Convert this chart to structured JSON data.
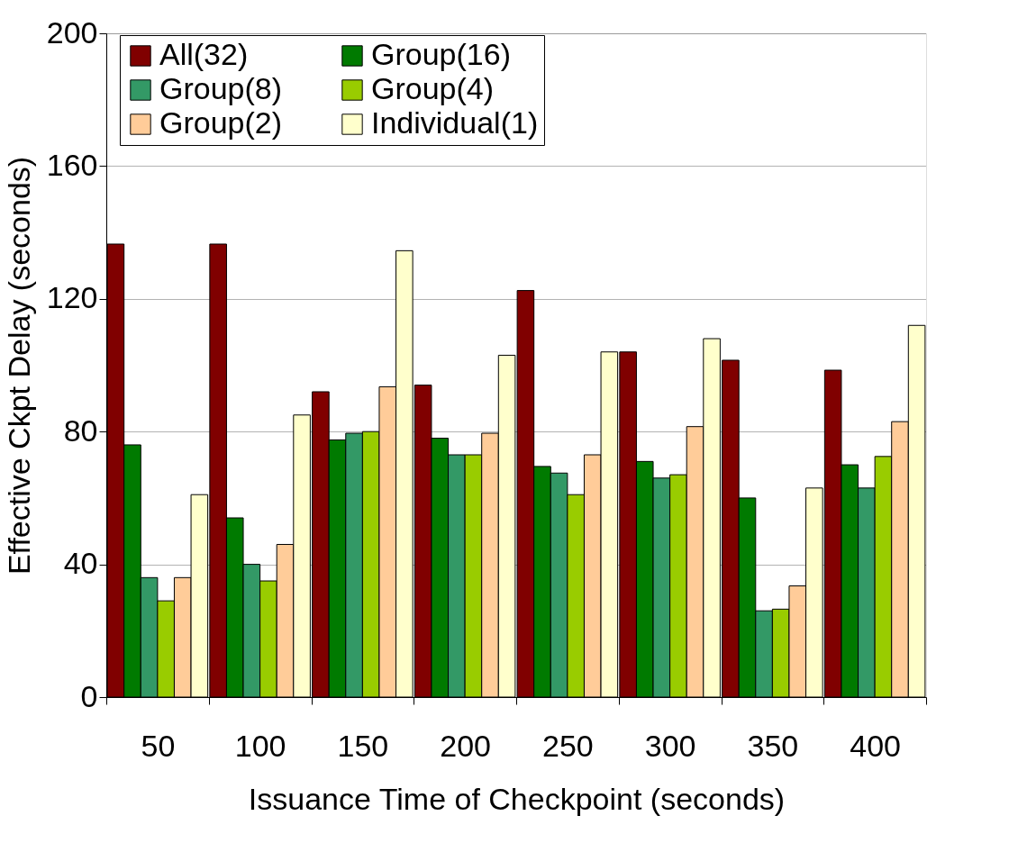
{
  "chart_data": {
    "type": "bar",
    "xlabel": "Issuance Time of Checkpoint (seconds)",
    "ylabel": "Effective Ckpt Delay (seconds)",
    "categories": [
      "50",
      "100",
      "150",
      "200",
      "250",
      "300",
      "350",
      "400"
    ],
    "series": [
      {
        "name": "All(32)",
        "color": "#800000",
        "values": [
          136.5,
          136.5,
          92,
          94,
          122.5,
          104,
          101.5,
          98.5
        ]
      },
      {
        "name": "Group(16)",
        "color": "#007a00",
        "values": [
          76,
          54,
          77.5,
          78,
          69.5,
          71,
          60,
          70
        ]
      },
      {
        "name": "Group(8)",
        "color": "#339966",
        "values": [
          36,
          40,
          79.5,
          73,
          67.5,
          66,
          26,
          63
        ]
      },
      {
        "name": "Group(4)",
        "color": "#99cc00",
        "values": [
          29,
          35,
          80,
          73,
          61,
          67,
          26.5,
          72.5
        ]
      },
      {
        "name": "Group(2)",
        "color": "#ffcc99",
        "values": [
          36,
          46,
          93.5,
          79.5,
          73,
          81.5,
          33.5,
          83
        ]
      },
      {
        "name": "Individual(1)",
        "color": "#ffffcc",
        "values": [
          61,
          85,
          134.5,
          103,
          104,
          108,
          63,
          112
        ]
      }
    ],
    "ylim": [
      0,
      200
    ],
    "yticks": [
      0,
      40,
      80,
      120,
      160,
      200
    ],
    "grid": "y",
    "legend": "top"
  }
}
